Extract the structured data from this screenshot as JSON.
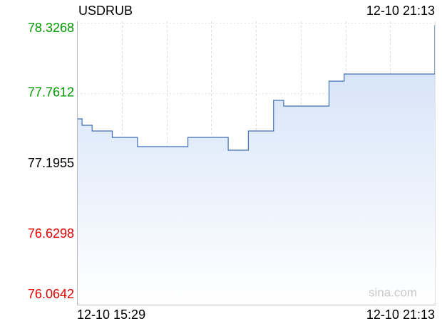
{
  "chart_data": {
    "type": "line",
    "title": "USDRUB",
    "timestamp": "12-10 21:13",
    "watermark": "sina.com",
    "categories": [
      "12-10 15:29",
      null,
      null,
      null,
      null,
      null,
      null,
      null,
      null,
      null,
      null,
      null,
      null,
      null,
      null,
      null,
      null,
      null,
      null,
      null,
      null,
      null,
      null,
      null,
      null,
      null,
      null,
      null,
      null,
      null,
      null,
      null,
      null,
      null,
      null,
      null,
      null,
      null,
      null,
      null,
      null,
      null,
      null,
      null,
      null,
      null,
      null,
      null,
      null,
      null,
      null,
      null,
      null,
      null,
      null,
      null,
      null,
      null,
      null,
      null,
      null,
      null,
      null,
      null,
      null,
      null,
      null,
      null,
      null,
      null,
      null,
      "12-10 21:13"
    ],
    "values": [
      77.5554,
      77.504,
      77.504,
      77.4583,
      77.4583,
      77.4583,
      77.4583,
      77.4068,
      77.4068,
      77.4068,
      77.4068,
      77.4068,
      77.3326,
      77.3326,
      77.3326,
      77.3326,
      77.3326,
      77.3326,
      77.3326,
      77.3326,
      77.3326,
      77.3326,
      77.4068,
      77.4068,
      77.4068,
      77.4068,
      77.4068,
      77.4068,
      77.4068,
      77.4068,
      77.304,
      77.304,
      77.304,
      77.304,
      77.4583,
      77.4583,
      77.4583,
      77.4583,
      77.4583,
      77.704,
      77.704,
      77.6582,
      77.6582,
      77.6582,
      77.6582,
      77.6582,
      77.6582,
      77.6582,
      77.6582,
      77.6582,
      77.8582,
      77.8582,
      77.8582,
      77.9154,
      77.9154,
      77.9154,
      77.9154,
      77.9154,
      77.9154,
      77.9154,
      77.9154,
      77.9154,
      77.9154,
      77.9154,
      77.9154,
      77.9154,
      77.9154,
      77.9154,
      77.9154,
      77.9154,
      77.9154,
      78.3097
    ],
    "color": "#3f6fb5",
    "area_color": "#cfdff7",
    "ylim": [
      76.0642,
      78.3268
    ],
    "yticks": [
      78.3268,
      77.7612,
      77.1955,
      76.6298,
      76.0642
    ],
    "ytick_colors": [
      "#009900",
      "#009900",
      "#000000",
      "#e00000",
      "#e00000"
    ],
    "grid": true
  }
}
